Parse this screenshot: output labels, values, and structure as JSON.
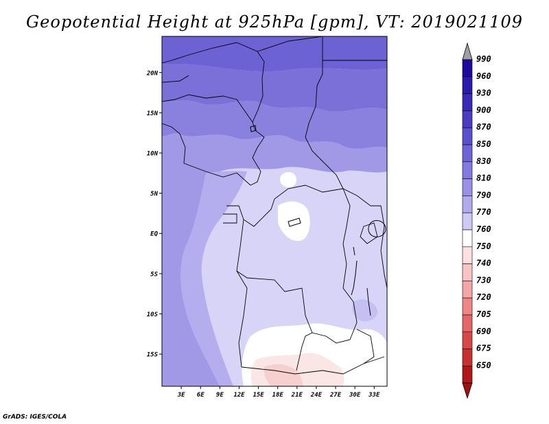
{
  "title": "Geopotential Height at 925hPa [gpm], VT: 2019021109",
  "credit": "GrADS: IGES/COLA",
  "map": {
    "lat_ticks": [
      "20N",
      "15N",
      "10N",
      "5N",
      "EQ",
      "5S",
      "10S",
      "15S"
    ],
    "lon_ticks": [
      "3E",
      "6E",
      "9E",
      "12E",
      "15E",
      "18E",
      "21E",
      "24E",
      "27E",
      "30E",
      "33E"
    ],
    "lat_values": [
      20,
      15,
      10,
      5,
      0,
      -5,
      -10,
      -15
    ],
    "lon_values": [
      3,
      6,
      9,
      12,
      15,
      18,
      21,
      24,
      27,
      30,
      33
    ],
    "lon_range": [
      0,
      35
    ],
    "lat_range": [
      -19,
      24.5
    ]
  },
  "colorbar": {
    "levels": [
      "990",
      "960",
      "930",
      "900",
      "870",
      "850",
      "830",
      "810",
      "790",
      "770",
      "760",
      "750",
      "740",
      "730",
      "720",
      "705",
      "690",
      "675",
      "650"
    ],
    "colors": [
      "#1f0a9e",
      "#2c1aaa",
      "#3a2ab6",
      "#4b3cc2",
      "#5c4fcc",
      "#6f64d6",
      "#8479de",
      "#9a90e6",
      "#b1aaee",
      "#cfcaf5",
      "#ffffff",
      "#fde0e0",
      "#f8c4c4",
      "#f3a6a6",
      "#ed8787",
      "#e56666",
      "#d84848",
      "#c83030",
      "#b01818"
    ],
    "top_arrow_color": "#a0a0a0",
    "bottom_arrow_color": "#a01010"
  },
  "field_colors": {
    "c890": "#6d62d4",
    "c860": "#7a70d8",
    "c840": "#8a81de",
    "c820": "#a199e6",
    "c800": "#b5aeee",
    "c790": "#c5c0f2",
    "c780": "#d7d4f7",
    "c765": "#ffffff",
    "c755": "#fbe6e6",
    "c745": "#f6cfcf"
  }
}
